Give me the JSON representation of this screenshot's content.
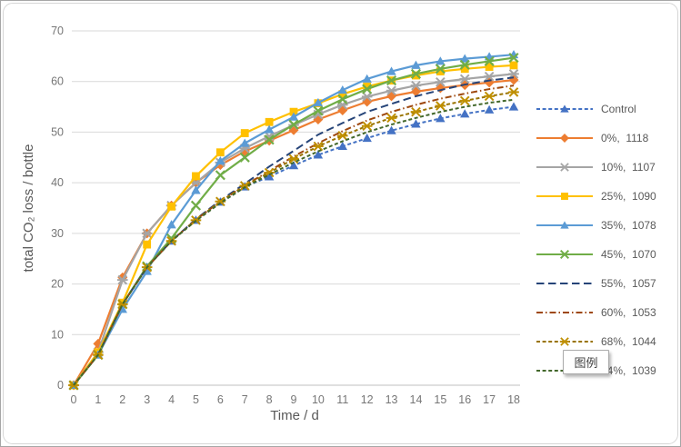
{
  "tooltip": {
    "text": "图例"
  },
  "chart_data": {
    "type": "line",
    "title": "",
    "xlabel": "Time / d",
    "ylabel": "total CO₂ loss / bottle",
    "x": [
      0,
      1,
      2,
      3,
      4,
      5,
      6,
      7,
      8,
      9,
      10,
      11,
      12,
      13,
      14,
      15,
      16,
      17,
      18
    ],
    "xlim": [
      0,
      18
    ],
    "ylim": [
      0,
      70
    ],
    "y_ticks": [
      0,
      10,
      20,
      30,
      40,
      50,
      60,
      70
    ],
    "grid": "horizontal",
    "legend_position": "right",
    "grid_color": "#d9d9d9",
    "axis_color": "#bfbfbf",
    "tick_color": "#767676",
    "label_color": "#595959",
    "series": [
      {
        "name": "Control",
        "color": "#4472C4",
        "line": "dash",
        "marker": "triangle",
        "values": [
          0,
          6,
          16,
          23.3,
          28.5,
          32.6,
          36.2,
          39.2,
          41.2,
          43.4,
          45.5,
          47.2,
          48.8,
          50.3,
          51.6,
          52.7,
          53.6,
          54.4,
          55
        ]
      },
      {
        "name": "0%,  1118",
        "color": "#ED7D31",
        "line": "solid",
        "marker": "diamond",
        "values": [
          0,
          8.2,
          21.3,
          30,
          35.5,
          40,
          43.5,
          46.2,
          48.3,
          50.4,
          52.5,
          54.3,
          56,
          57.1,
          58,
          58.7,
          59.3,
          59.8,
          60.3
        ]
      },
      {
        "name": "10%,  1107",
        "color": "#A5A5A5",
        "line": "solid",
        "marker": "star",
        "values": [
          0,
          6.5,
          20.8,
          30,
          35.5,
          40,
          44,
          46.8,
          49.2,
          51.4,
          53.5,
          55.4,
          57,
          58.2,
          59.2,
          59.9,
          60.5,
          61,
          61.5
        ]
      },
      {
        "name": "25%,  1090",
        "color": "#FFC000",
        "line": "solid",
        "marker": "square",
        "values": [
          0,
          6.5,
          16.3,
          27.8,
          35.3,
          41.3,
          46,
          49.8,
          52,
          54,
          55.7,
          57.5,
          59,
          60.2,
          61.2,
          62,
          62.5,
          62.9,
          63.2
        ]
      },
      {
        "name": "35%,  1078",
        "color": "#5B9BD5",
        "line": "solid",
        "marker": "triangle",
        "values": [
          0,
          6,
          15,
          22.5,
          31.7,
          38.5,
          44.3,
          47.8,
          50.5,
          53,
          55.8,
          58.3,
          60.5,
          62,
          63.2,
          64,
          64.5,
          64.9,
          65.3
        ]
      },
      {
        "name": "45%,  1070",
        "color": "#70AD47",
        "line": "solid",
        "marker": "x",
        "values": [
          0,
          6,
          16,
          23.5,
          29,
          35.5,
          41.5,
          45,
          48.5,
          51.5,
          54.2,
          56.5,
          58.5,
          60.2,
          61.5,
          62.5,
          63.3,
          64,
          64.7
        ]
      },
      {
        "name": "55%,  1057",
        "color": "#264478",
        "line": "long-dash",
        "marker": "none",
        "values": [
          0,
          6,
          16,
          23.3,
          28.5,
          32.8,
          36.5,
          39.8,
          43.2,
          46.3,
          49.5,
          51.8,
          54,
          55.6,
          57.1,
          58.3,
          59.4,
          60.2,
          60.8
        ]
      },
      {
        "name": "60%,  1053",
        "color": "#9E480E",
        "line": "dash-dot",
        "marker": "none",
        "values": [
          0,
          6,
          16,
          23.3,
          28.5,
          32.7,
          36.3,
          39.5,
          42.3,
          45.2,
          47.8,
          50.2,
          52.3,
          54,
          55.4,
          56.6,
          57.6,
          58.5,
          59.2
        ]
      },
      {
        "name": "68%,  1044",
        "color": "#997300",
        "marker_color": "#BF8F00",
        "line": "dash",
        "marker": "star",
        "values": [
          0,
          6,
          16,
          23.3,
          28.5,
          32.6,
          36.3,
          39.4,
          42,
          44.7,
          47.2,
          49.3,
          51.2,
          52.8,
          54,
          55.2,
          56.2,
          57.1,
          57.9
        ]
      },
      {
        "name": "74%,  1039",
        "color": "#43682B",
        "line": "dash",
        "marker": "none",
        "values": [
          0,
          6,
          16,
          23.3,
          28.5,
          32.5,
          36,
          39.1,
          41.6,
          44,
          46.2,
          48.2,
          50,
          51.5,
          52.8,
          54,
          55,
          55.8,
          56.4
        ]
      }
    ]
  }
}
